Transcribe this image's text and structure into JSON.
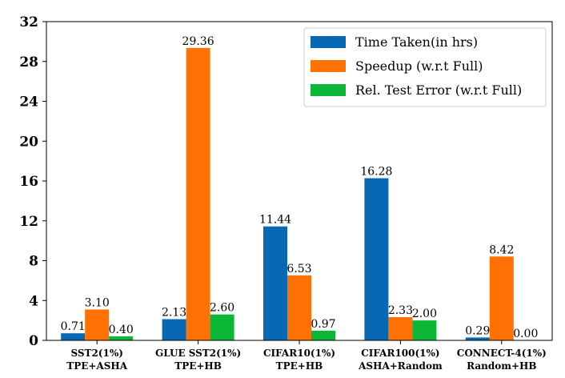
{
  "chart_data": {
    "type": "bar",
    "title": "",
    "xlabel": "",
    "ylabel": "",
    "ylim": [
      0,
      32
    ],
    "yticks": [
      0,
      4,
      8,
      12,
      16,
      20,
      24,
      28,
      32
    ],
    "grid": false,
    "legend_position": "top-right",
    "categories": [
      {
        "line1": "SST2(1%)",
        "line2": "TPE+ASHA"
      },
      {
        "line1": "GLUE SST2(1%)",
        "line2": "TPE+HB"
      },
      {
        "line1": "CIFAR10(1%)",
        "line2": "TPE+HB"
      },
      {
        "line1": "CIFAR100(1%)",
        "line2": "ASHA+Random"
      },
      {
        "line1": "CONNECT-4(1%)",
        "line2": "Random+HB"
      }
    ],
    "series": [
      {
        "name": "Time Taken(in hrs)",
        "color": "#0868b3",
        "values": [
          0.71,
          2.13,
          11.44,
          16.28,
          0.29
        ],
        "labels": [
          "0.71",
          "2.13",
          "11.44",
          "16.28",
          "0.29"
        ]
      },
      {
        "name": "Speedup (w.r.t Full)",
        "color": "#ff7103",
        "values": [
          3.1,
          29.36,
          6.53,
          2.33,
          8.42
        ],
        "labels": [
          "3.10",
          "29.36",
          "6.53",
          "2.33",
          "8.42"
        ]
      },
      {
        "name": "Rel. Test Error (w.r.t Full)",
        "color": "#0cb636",
        "values": [
          0.4,
          2.6,
          0.97,
          2.0,
          0.0
        ],
        "labels": [
          "0.40",
          "2.60",
          "0.97",
          "2.00",
          "0.00"
        ]
      }
    ]
  }
}
